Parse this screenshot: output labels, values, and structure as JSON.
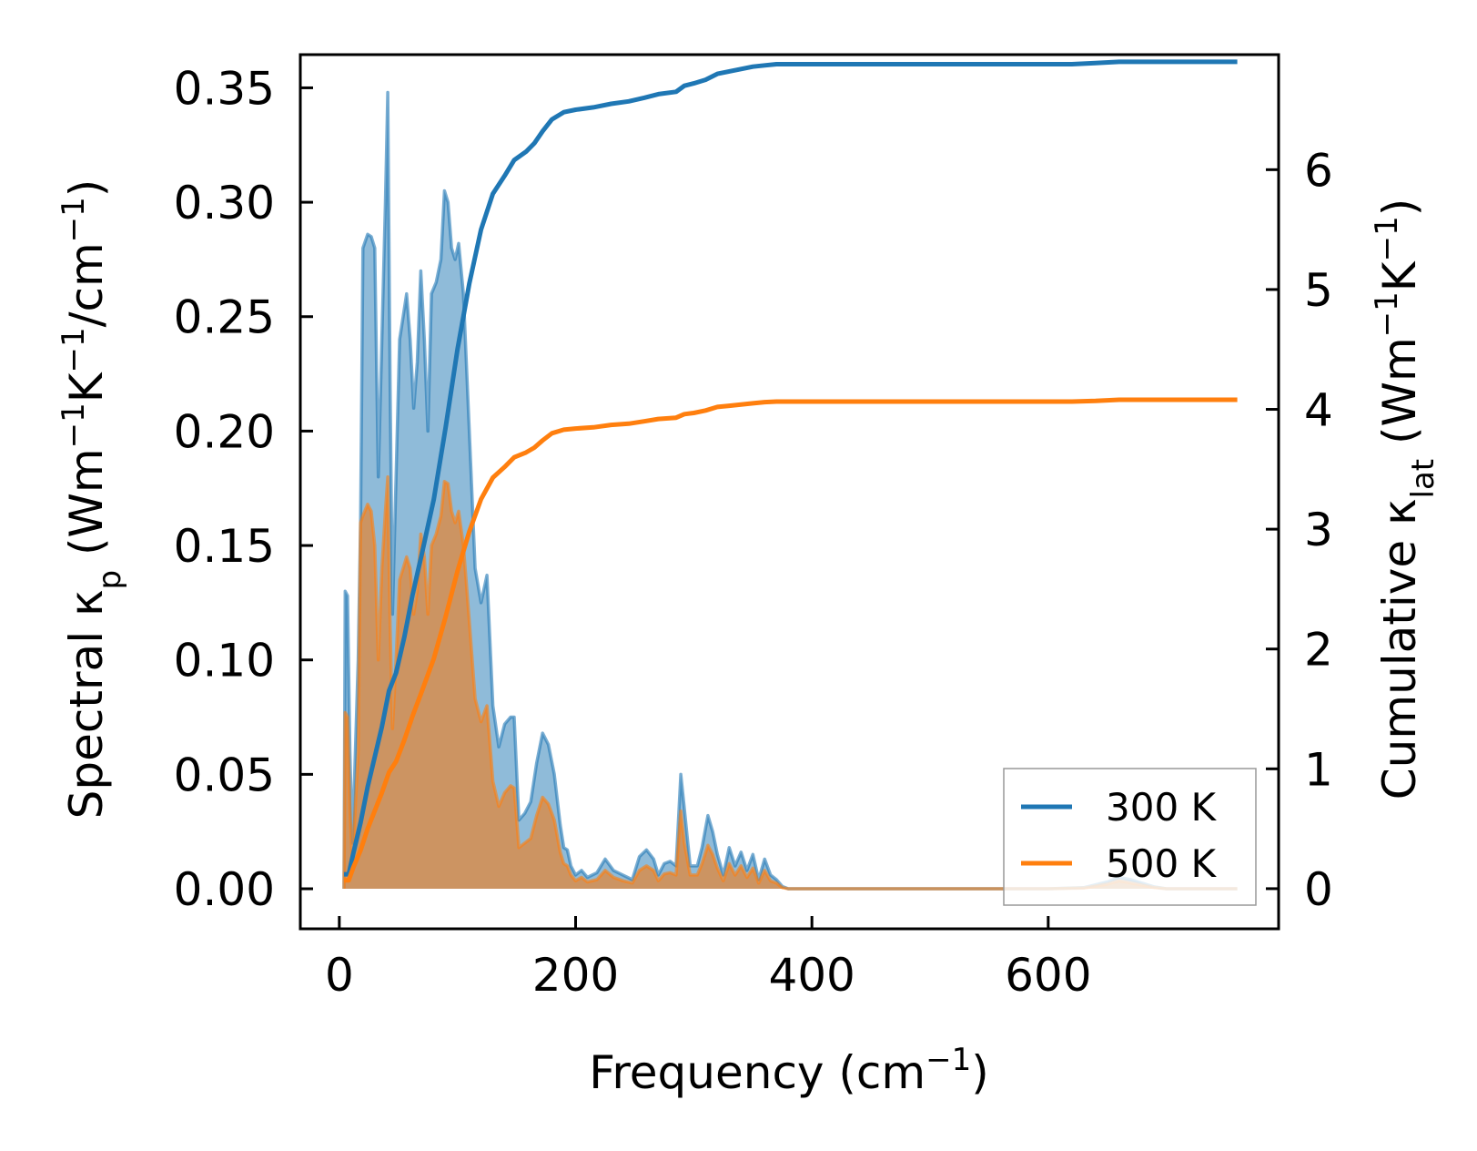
{
  "chart_data": {
    "type": "line",
    "xlabel": "Frequency (cm",
    "xlabel_sup": "−1",
    "xlabel_end": ")",
    "ylabel_left": {
      "a": "Spectral κ",
      "a_sub": "p",
      "b": " (Wm",
      "b_sup": "−1",
      "c": "K",
      "c_sup": "−1",
      "d": "/cm",
      "d_sup": "−1",
      "e": ")"
    },
    "ylabel_right": {
      "a": "Cumulative κ",
      "a_sub": "lat",
      "b": " (Wm",
      "b_sup": "−1",
      "c": "K",
      "c_sup": "−1",
      "d": ")"
    },
    "xlim": [
      -33,
      795
    ],
    "ylim_left": [
      -0.0175,
      0.3645
    ],
    "ylim_right": [
      -0.335,
      6.96
    ],
    "x_ticks": [
      0,
      200,
      400,
      600
    ],
    "x_tick_labels": [
      "0",
      "200",
      "400",
      "600"
    ],
    "y_left_ticks": [
      0.0,
      0.05,
      0.1,
      0.15,
      0.2,
      0.25,
      0.3,
      0.35
    ],
    "y_left_tick_labels": [
      "0.00",
      "0.05",
      "0.10",
      "0.15",
      "0.20",
      "0.25",
      "0.30",
      "0.35"
    ],
    "y_right_ticks": [
      0,
      1,
      2,
      3,
      4,
      5,
      6
    ],
    "y_right_tick_labels": [
      "0",
      "1",
      "2",
      "3",
      "4",
      "5",
      "6"
    ],
    "legend_position": "bottom-right",
    "series": [
      {
        "name": "300 K",
        "color": "#1f77b4",
        "spectral": [
          [
            4,
            0.0
          ],
          [
            5,
            0.13
          ],
          [
            7,
            0.128
          ],
          [
            9,
            0.06
          ],
          [
            11,
            0.02
          ],
          [
            13,
            0.05
          ],
          [
            16,
            0.1
          ],
          [
            18,
            0.16
          ],
          [
            20,
            0.28
          ],
          [
            24,
            0.286
          ],
          [
            27,
            0.285
          ],
          [
            30,
            0.28
          ],
          [
            33,
            0.18
          ],
          [
            36,
            0.24
          ],
          [
            39,
            0.3
          ],
          [
            41,
            0.348
          ],
          [
            43,
            0.22
          ],
          [
            45,
            0.12
          ],
          [
            48,
            0.18
          ],
          [
            51,
            0.24
          ],
          [
            54,
            0.25
          ],
          [
            57,
            0.26
          ],
          [
            60,
            0.24
          ],
          [
            63,
            0.21
          ],
          [
            66,
            0.23
          ],
          [
            69,
            0.27
          ],
          [
            72,
            0.24
          ],
          [
            75,
            0.2
          ],
          [
            78,
            0.26
          ],
          [
            82,
            0.265
          ],
          [
            86,
            0.275
          ],
          [
            89,
            0.305
          ],
          [
            92,
            0.3
          ],
          [
            95,
            0.28
          ],
          [
            98,
            0.275
          ],
          [
            101,
            0.282
          ],
          [
            105,
            0.26
          ],
          [
            110,
            0.2
          ],
          [
            115,
            0.14
          ],
          [
            120,
            0.125
          ],
          [
            125,
            0.137
          ],
          [
            130,
            0.08
          ],
          [
            135,
            0.062
          ],
          [
            140,
            0.072
          ],
          [
            145,
            0.075
          ],
          [
            148,
            0.075
          ],
          [
            152,
            0.03
          ],
          [
            157,
            0.033
          ],
          [
            162,
            0.038
          ],
          [
            167,
            0.055
          ],
          [
            172,
            0.068
          ],
          [
            177,
            0.063
          ],
          [
            182,
            0.05
          ],
          [
            187,
            0.028
          ],
          [
            190,
            0.018
          ],
          [
            193,
            0.017
          ],
          [
            196,
            0.01
          ],
          [
            200,
            0.006
          ],
          [
            205,
            0.008
          ],
          [
            210,
            0.005
          ],
          [
            218,
            0.007
          ],
          [
            225,
            0.013
          ],
          [
            232,
            0.008
          ],
          [
            240,
            0.006
          ],
          [
            248,
            0.004
          ],
          [
            254,
            0.014
          ],
          [
            260,
            0.017
          ],
          [
            266,
            0.013
          ],
          [
            270,
            0.006
          ],
          [
            275,
            0.011
          ],
          [
            280,
            0.012
          ],
          [
            285,
            0.01
          ],
          [
            289,
            0.05
          ],
          [
            292,
            0.035
          ],
          [
            297,
            0.01
          ],
          [
            303,
            0.01
          ],
          [
            307,
            0.018
          ],
          [
            312,
            0.032
          ],
          [
            316,
            0.025
          ],
          [
            320,
            0.015
          ],
          [
            325,
            0.006
          ],
          [
            330,
            0.018
          ],
          [
            335,
            0.01
          ],
          [
            340,
            0.016
          ],
          [
            345,
            0.008
          ],
          [
            350,
            0.015
          ],
          [
            355,
            0.004
          ],
          [
            360,
            0.013
          ],
          [
            365,
            0.006
          ],
          [
            370,
            0.004
          ],
          [
            375,
            0.001
          ],
          [
            380,
            0.0
          ],
          [
            400,
            0.0
          ],
          [
            600,
            0.0
          ],
          [
            630,
            0.0005
          ],
          [
            650,
            0.003
          ],
          [
            660,
            0.005
          ],
          [
            670,
            0.004
          ],
          [
            690,
            0.0008
          ],
          [
            700,
            0.0
          ],
          [
            760,
            0.0
          ]
        ],
        "cumulative": [
          [
            4,
            0.12
          ],
          [
            8,
            0.12
          ],
          [
            12,
            0.3
          ],
          [
            18,
            0.55
          ],
          [
            24,
            0.85
          ],
          [
            30,
            1.1
          ],
          [
            36,
            1.35
          ],
          [
            42,
            1.65
          ],
          [
            48,
            1.8
          ],
          [
            55,
            2.1
          ],
          [
            62,
            2.45
          ],
          [
            70,
            2.8
          ],
          [
            80,
            3.25
          ],
          [
            90,
            3.85
          ],
          [
            100,
            4.5
          ],
          [
            110,
            5.05
          ],
          [
            120,
            5.5
          ],
          [
            130,
            5.8
          ],
          [
            140,
            5.95
          ],
          [
            148,
            6.08
          ],
          [
            158,
            6.15
          ],
          [
            165,
            6.22
          ],
          [
            172,
            6.32
          ],
          [
            180,
            6.42
          ],
          [
            190,
            6.48
          ],
          [
            200,
            6.5
          ],
          [
            215,
            6.52
          ],
          [
            230,
            6.55
          ],
          [
            245,
            6.57
          ],
          [
            258,
            6.6
          ],
          [
            270,
            6.63
          ],
          [
            285,
            6.65
          ],
          [
            292,
            6.7
          ],
          [
            300,
            6.72
          ],
          [
            310,
            6.75
          ],
          [
            320,
            6.8
          ],
          [
            330,
            6.82
          ],
          [
            340,
            6.84
          ],
          [
            350,
            6.86
          ],
          [
            360,
            6.87
          ],
          [
            370,
            6.88
          ],
          [
            380,
            6.88
          ],
          [
            500,
            6.88
          ],
          [
            620,
            6.88
          ],
          [
            640,
            6.89
          ],
          [
            660,
            6.9
          ],
          [
            680,
            6.9
          ],
          [
            760,
            6.9
          ]
        ]
      },
      {
        "name": "500 K",
        "color": "#ff7f0e",
        "spectral": [
          [
            4,
            0.0
          ],
          [
            5,
            0.077
          ],
          [
            7,
            0.075
          ],
          [
            9,
            0.035
          ],
          [
            11,
            0.012
          ],
          [
            13,
            0.03
          ],
          [
            16,
            0.06
          ],
          [
            18,
            0.16
          ],
          [
            20,
            0.163
          ],
          [
            24,
            0.168
          ],
          [
            27,
            0.165
          ],
          [
            30,
            0.15
          ],
          [
            33,
            0.1
          ],
          [
            36,
            0.14
          ],
          [
            39,
            0.165
          ],
          [
            41,
            0.18
          ],
          [
            43,
            0.115
          ],
          [
            45,
            0.07
          ],
          [
            48,
            0.1
          ],
          [
            51,
            0.135
          ],
          [
            54,
            0.14
          ],
          [
            57,
            0.145
          ],
          [
            60,
            0.14
          ],
          [
            63,
            0.12
          ],
          [
            66,
            0.13
          ],
          [
            69,
            0.155
          ],
          [
            72,
            0.145
          ],
          [
            75,
            0.12
          ],
          [
            78,
            0.15
          ],
          [
            82,
            0.155
          ],
          [
            86,
            0.163
          ],
          [
            89,
            0.178
          ],
          [
            92,
            0.177
          ],
          [
            95,
            0.165
          ],
          [
            98,
            0.16
          ],
          [
            101,
            0.165
          ],
          [
            105,
            0.15
          ],
          [
            110,
            0.117
          ],
          [
            115,
            0.083
          ],
          [
            120,
            0.073
          ],
          [
            125,
            0.08
          ],
          [
            130,
            0.047
          ],
          [
            135,
            0.036
          ],
          [
            140,
            0.042
          ],
          [
            145,
            0.045
          ],
          [
            148,
            0.044
          ],
          [
            152,
            0.018
          ],
          [
            157,
            0.02
          ],
          [
            162,
            0.022
          ],
          [
            167,
            0.032
          ],
          [
            172,
            0.04
          ],
          [
            177,
            0.037
          ],
          [
            182,
            0.03
          ],
          [
            187,
            0.016
          ],
          [
            190,
            0.011
          ],
          [
            193,
            0.01
          ],
          [
            196,
            0.006
          ],
          [
            200,
            0.0035
          ],
          [
            205,
            0.005
          ],
          [
            210,
            0.003
          ],
          [
            218,
            0.004
          ],
          [
            225,
            0.008
          ],
          [
            232,
            0.005
          ],
          [
            240,
            0.0035
          ],
          [
            248,
            0.0025
          ],
          [
            254,
            0.008
          ],
          [
            260,
            0.01
          ],
          [
            266,
            0.008
          ],
          [
            270,
            0.0035
          ],
          [
            275,
            0.0065
          ],
          [
            280,
            0.007
          ],
          [
            285,
            0.006
          ],
          [
            289,
            0.034
          ],
          [
            292,
            0.02
          ],
          [
            297,
            0.006
          ],
          [
            303,
            0.006
          ],
          [
            307,
            0.011
          ],
          [
            312,
            0.019
          ],
          [
            316,
            0.015
          ],
          [
            320,
            0.009
          ],
          [
            325,
            0.0035
          ],
          [
            330,
            0.011
          ],
          [
            335,
            0.006
          ],
          [
            340,
            0.01
          ],
          [
            345,
            0.005
          ],
          [
            350,
            0.009
          ],
          [
            355,
            0.0025
          ],
          [
            360,
            0.008
          ],
          [
            365,
            0.0035
          ],
          [
            370,
            0.0025
          ],
          [
            375,
            0.0005
          ],
          [
            380,
            0.0
          ],
          [
            400,
            0.0
          ],
          [
            600,
            0.0
          ],
          [
            630,
            0.0003
          ],
          [
            650,
            0.002
          ],
          [
            660,
            0.0035
          ],
          [
            670,
            0.0025
          ],
          [
            690,
            0.0005
          ],
          [
            700,
            0.0
          ],
          [
            760,
            0.0
          ]
        ],
        "cumulative": [
          [
            4,
            0.07
          ],
          [
            8,
            0.07
          ],
          [
            12,
            0.18
          ],
          [
            18,
            0.32
          ],
          [
            24,
            0.5
          ],
          [
            30,
            0.65
          ],
          [
            36,
            0.8
          ],
          [
            42,
            0.97
          ],
          [
            48,
            1.06
          ],
          [
            55,
            1.24
          ],
          [
            62,
            1.44
          ],
          [
            70,
            1.65
          ],
          [
            80,
            1.92
          ],
          [
            90,
            2.27
          ],
          [
            100,
            2.65
          ],
          [
            110,
            2.98
          ],
          [
            120,
            3.25
          ],
          [
            130,
            3.43
          ],
          [
            140,
            3.52
          ],
          [
            148,
            3.6
          ],
          [
            158,
            3.64
          ],
          [
            165,
            3.68
          ],
          [
            172,
            3.74
          ],
          [
            180,
            3.8
          ],
          [
            190,
            3.83
          ],
          [
            200,
            3.84
          ],
          [
            215,
            3.85
          ],
          [
            230,
            3.87
          ],
          [
            245,
            3.88
          ],
          [
            258,
            3.9
          ],
          [
            270,
            3.92
          ],
          [
            285,
            3.93
          ],
          [
            292,
            3.96
          ],
          [
            300,
            3.97
          ],
          [
            310,
            3.99
          ],
          [
            320,
            4.02
          ],
          [
            330,
            4.03
          ],
          [
            340,
            4.04
          ],
          [
            350,
            4.05
          ],
          [
            360,
            4.06
          ],
          [
            370,
            4.065
          ],
          [
            380,
            4.065
          ],
          [
            500,
            4.065
          ],
          [
            620,
            4.065
          ],
          [
            640,
            4.07
          ],
          [
            660,
            4.08
          ],
          [
            680,
            4.08
          ],
          [
            760,
            4.08
          ]
        ]
      }
    ]
  }
}
